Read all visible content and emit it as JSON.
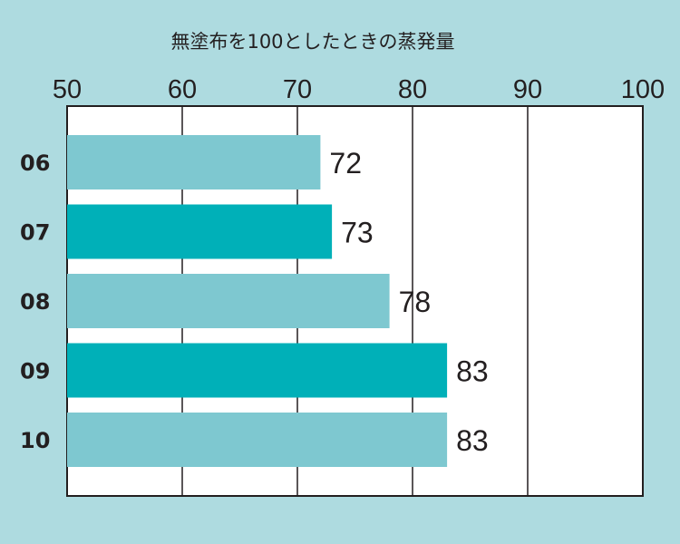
{
  "chart_data": {
    "type": "bar",
    "orientation": "horizontal",
    "title": "無塗布を100としたときの蒸発量",
    "categories": [
      "06",
      "07",
      "08",
      "09",
      "10"
    ],
    "values": [
      72,
      73,
      78,
      83,
      83
    ],
    "data_labels": [
      "72",
      "73",
      "78",
      "83",
      "83"
    ],
    "xlim": [
      50,
      100
    ],
    "ticks": [
      50,
      60,
      70,
      80,
      90,
      100
    ],
    "tick_labels": [
      "50",
      "60",
      "70",
      "80",
      "90",
      "100"
    ],
    "grid": true,
    "legend": "none",
    "colors": {
      "background": "#aedbe0",
      "plot_background": "#ffffff",
      "bar_light": "#7ec8d0",
      "bar_dark": "#00b0b8",
      "gridline": "#231f20",
      "text": "#231f20"
    }
  }
}
